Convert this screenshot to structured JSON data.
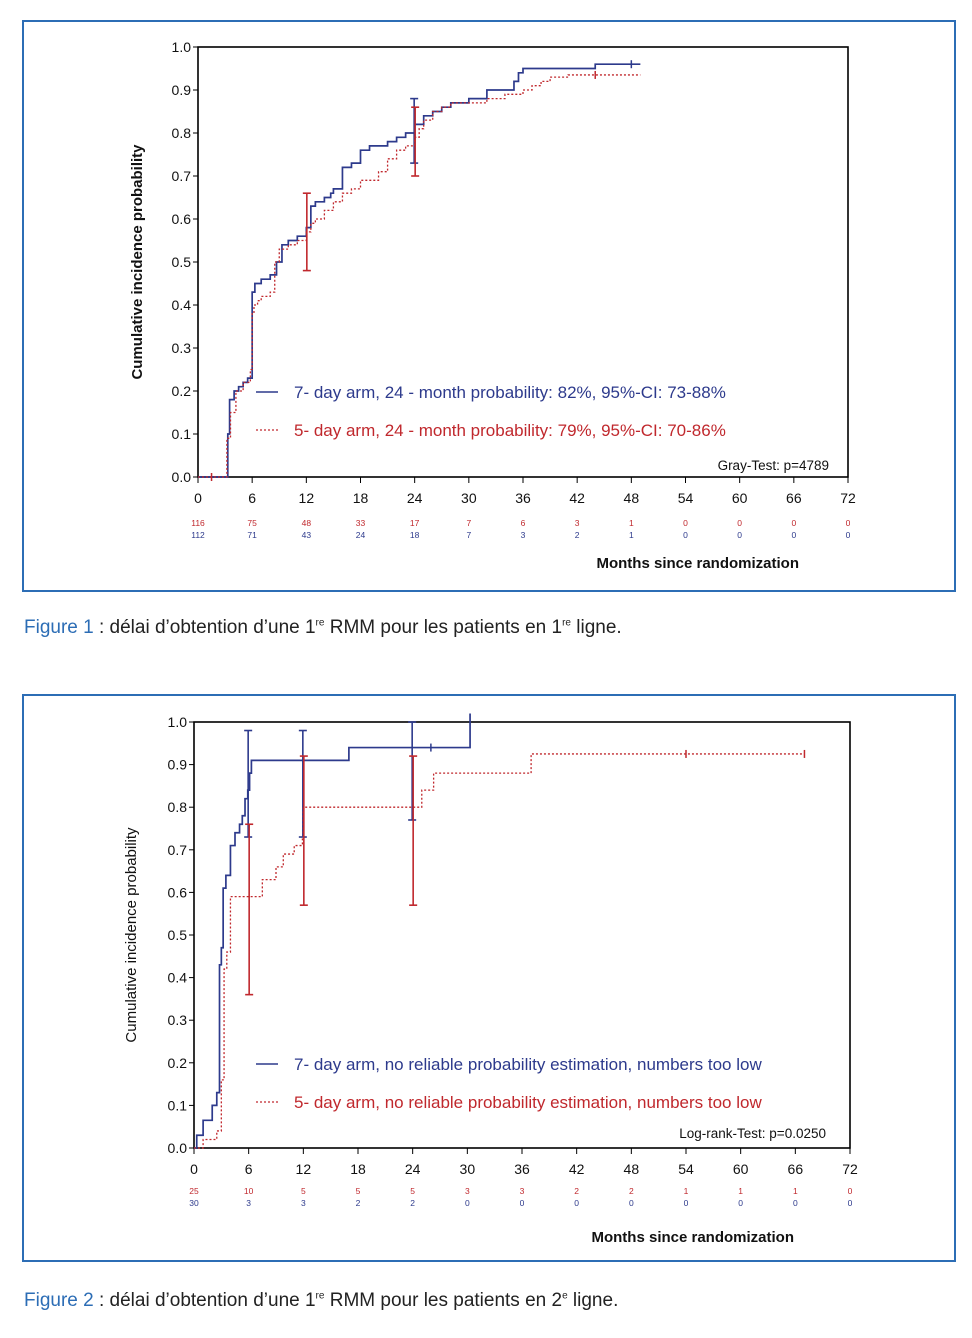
{
  "figures": [
    {
      "caption": {
        "fig_label": "Figure 1",
        "pre": " : délai d’obtention d’une 1",
        "sup1": "re",
        "mid": " RMM pour les patients en 1",
        "sup2": "re",
        "post": " ligne."
      }
    },
    {
      "caption": {
        "fig_label": "Figure 2",
        "pre": " : délai d’obtention d’une 1",
        "sup1": "re",
        "mid": " RMM pour les patients en 2",
        "sup2": "e",
        "post": " ligne."
      }
    }
  ],
  "chart_data": [
    {
      "type": "line",
      "step": true,
      "ylabel": "Cumulative incidence probability",
      "xlabel": "Months since randomization",
      "xlim": [
        0,
        72
      ],
      "ylim": [
        0,
        1
      ],
      "xticks": [
        "0",
        "6",
        "12",
        "18",
        "24",
        "30",
        "36",
        "42",
        "48",
        "54",
        "60",
        "66",
        "72"
      ],
      "yticks": [
        "0.0",
        "0.1",
        "0.2",
        "0.3",
        "0.4",
        "0.5",
        "0.6",
        "0.7",
        "0.8",
        "0.9",
        "1.0"
      ],
      "test_label": "Gray-Test: p=4789",
      "colors": {
        "blue": "#2d3a8c",
        "red": "#c0282d"
      },
      "series": [
        {
          "name": "7- day arm, 24 - month probability: 82%, 95%-CI: 73-88%",
          "color": "#2d3a8c",
          "dash": false,
          "x": [
            0,
            3,
            3.3,
            3.5,
            4,
            4.5,
            5,
            5.5,
            6,
            6.3,
            7,
            8,
            8.7,
            9.3,
            10,
            11,
            12,
            12.5,
            13,
            14,
            14.7,
            15,
            16,
            17,
            18,
            19,
            21,
            22,
            23,
            24,
            25,
            26,
            27,
            28,
            30,
            32,
            35,
            35.5,
            36,
            44,
            49
          ],
          "y": [
            0,
            0,
            0.1,
            0.18,
            0.2,
            0.21,
            0.22,
            0.23,
            0.43,
            0.45,
            0.46,
            0.47,
            0.5,
            0.54,
            0.55,
            0.56,
            0.58,
            0.63,
            0.64,
            0.65,
            0.66,
            0.67,
            0.72,
            0.73,
            0.76,
            0.77,
            0.78,
            0.79,
            0.8,
            0.82,
            0.84,
            0.85,
            0.86,
            0.87,
            0.88,
            0.9,
            0.92,
            0.94,
            0.95,
            0.96,
            0.96
          ],
          "ci": [
            {
              "x": 24,
              "lo": 0.73,
              "hi": 0.88
            }
          ],
          "censors": [
            {
              "x": 48,
              "y": 0.96
            }
          ]
        },
        {
          "name": "5- day arm, 24 - month probability: 79%, 95%-CI: 70-86%",
          "color": "#c0282d",
          "dash": true,
          "x": [
            0,
            3,
            3.2,
            3.6,
            4.2,
            5,
            5.8,
            6,
            6.2,
            6.6,
            7,
            8,
            8.5,
            9,
            10,
            11,
            12,
            12.5,
            13,
            14,
            15,
            16,
            17,
            18,
            20,
            21,
            22,
            23,
            24,
            24.5,
            25,
            26,
            27,
            28,
            30,
            32,
            33,
            34,
            35,
            36,
            37,
            38,
            39,
            41,
            49
          ],
          "y": [
            0,
            0,
            0.09,
            0.15,
            0.2,
            0.22,
            0.25,
            0.38,
            0.4,
            0.41,
            0.42,
            0.43,
            0.5,
            0.53,
            0.54,
            0.55,
            0.57,
            0.59,
            0.6,
            0.62,
            0.64,
            0.66,
            0.67,
            0.69,
            0.71,
            0.74,
            0.76,
            0.77,
            0.79,
            0.81,
            0.83,
            0.85,
            0.86,
            0.87,
            0.87,
            0.88,
            0.88,
            0.89,
            0.89,
            0.9,
            0.91,
            0.92,
            0.93,
            0.935,
            0.935
          ],
          "ci": [
            {
              "x": 24,
              "lo": 0.7,
              "hi": 0.86
            },
            {
              "x": 12,
              "lo": 0.48,
              "hi": 0.66
            }
          ],
          "censors": [
            {
              "x": 44,
              "y": 0.935
            },
            {
              "x": 1.5,
              "y": 0
            }
          ]
        }
      ],
      "at_risk": [
        {
          "color": "#c0282d",
          "values": [
            "116",
            "75",
            "48",
            "33",
            "17",
            "7",
            "6",
            "3",
            "1",
            "0",
            "0",
            "0",
            "0"
          ]
        },
        {
          "color": "#2d3a8c",
          "values": [
            "112",
            "71",
            "43",
            "24",
            "18",
            "7",
            "3",
            "2",
            "1",
            "0",
            "0",
            "0",
            "0"
          ]
        }
      ]
    },
    {
      "type": "line",
      "step": true,
      "ylabel": "Cumulative incidence probability",
      "xlabel": "Months since randomization",
      "xlim": [
        0,
        72
      ],
      "ylim": [
        0,
        1
      ],
      "xticks": [
        "0",
        "6",
        "12",
        "18",
        "24",
        "30",
        "36",
        "42",
        "48",
        "54",
        "60",
        "66",
        "72"
      ],
      "yticks": [
        "0.0",
        "0.1",
        "0.2",
        "0.3",
        "0.4",
        "0.5",
        "0.6",
        "0.7",
        "0.8",
        "0.9",
        "1.0"
      ],
      "test_label": "Log-rank-Test: p=0.0250",
      "colors": {
        "blue": "#2d3a8c",
        "red": "#c0282d"
      },
      "series": [
        {
          "name": "7- day arm, no reliable probability estimation, numbers too low",
          "color": "#2d3a8c",
          "dash": false,
          "x": [
            0,
            0.3,
            1,
            2,
            2.5,
            2.8,
            3,
            3.2,
            3.5,
            4,
            4.5,
            5,
            5.3,
            5.6,
            5.9,
            6.1,
            6.3,
            12,
            17,
            24,
            30,
            30.3
          ],
          "y": [
            0,
            0.03,
            0.065,
            0.1,
            0.13,
            0.43,
            0.47,
            0.61,
            0.64,
            0.71,
            0.74,
            0.76,
            0.78,
            0.82,
            0.84,
            0.88,
            0.91,
            0.91,
            0.94,
            0.94,
            0.94,
            1.02
          ],
          "ci": [
            {
              "x": 6,
              "lo": 0.73,
              "hi": 0.98
            },
            {
              "x": 12,
              "lo": 0.73,
              "hi": 0.98
            },
            {
              "x": 24,
              "lo": 0.77,
              "hi": 1.0
            }
          ],
          "censors": [
            {
              "x": 26,
              "y": 0.94
            }
          ]
        },
        {
          "name": "5- day arm, no reliable probability estimation, numbers too low",
          "color": "#c0282d",
          "dash": true,
          "x": [
            0,
            1,
            2.5,
            3,
            3.3,
            3.6,
            4,
            7,
            7.5,
            9,
            9.8,
            11,
            11.9,
            12,
            24,
            25,
            26.3,
            37,
            67
          ],
          "y": [
            0,
            0.02,
            0.04,
            0.16,
            0.42,
            0.46,
            0.59,
            0.59,
            0.63,
            0.66,
            0.69,
            0.71,
            0.73,
            0.8,
            0.8,
            0.84,
            0.88,
            0.925,
            0.925
          ],
          "ci": [
            {
              "x": 6,
              "lo": 0.36,
              "hi": 0.76
            },
            {
              "x": 12,
              "lo": 0.57,
              "hi": 0.92
            },
            {
              "x": 24,
              "lo": 0.57,
              "hi": 0.92
            }
          ],
          "censors": [
            {
              "x": 54,
              "y": 0.925
            },
            {
              "x": 67,
              "y": 0.925
            }
          ]
        }
      ],
      "at_risk": [
        {
          "color": "#c0282d",
          "values": [
            "25",
            "10",
            "5",
            "5",
            "5",
            "3",
            "3",
            "2",
            "2",
            "1",
            "1",
            "1",
            "0"
          ]
        },
        {
          "color": "#2d3a8c",
          "values": [
            "30",
            "3",
            "3",
            "2",
            "2",
            "0",
            "0",
            "0",
            "0",
            "0",
            "0",
            "0",
            "0"
          ]
        }
      ]
    }
  ]
}
